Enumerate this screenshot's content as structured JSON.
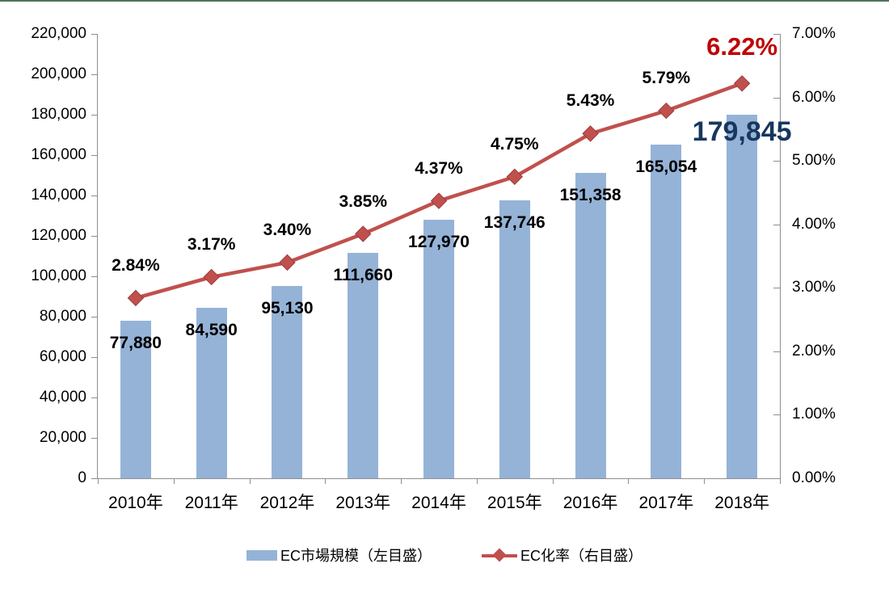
{
  "chart_data": {
    "type": "bar",
    "subtype": "combo-bar-line-dual-axis",
    "categories": [
      "2010年",
      "2011年",
      "2012年",
      "2013年",
      "2014年",
      "2015年",
      "2016年",
      "2017年",
      "2018年"
    ],
    "series": [
      {
        "name": "EC市場規模（左目盛）",
        "type": "bar",
        "axis": "left",
        "color": "#95B3D7",
        "values": [
          77880,
          84590,
          95130,
          111660,
          127970,
          137746,
          151358,
          165054,
          179845
        ],
        "labels": [
          "77,880",
          "84,590",
          "95,130",
          "111,660",
          "127,970",
          "137,746",
          "151,358",
          "165,054",
          "179,845"
        ],
        "emphasis_last": true,
        "emphasis_color": "#17375E"
      },
      {
        "name": "EC化率（右目盛）",
        "type": "line",
        "axis": "right",
        "color": "#C0504D",
        "marker": "diamond",
        "values": [
          2.84,
          3.17,
          3.4,
          3.85,
          4.37,
          4.75,
          5.43,
          5.79,
          6.22
        ],
        "labels": [
          "2.84%",
          "3.17%",
          "3.40%",
          "3.85%",
          "4.37%",
          "4.75%",
          "5.43%",
          "5.79%",
          "6.22%"
        ],
        "emphasis_last": true,
        "emphasis_color": "#C00000"
      }
    ],
    "left_axis": {
      "min": 0,
      "max": 220000,
      "step": 20000,
      "ticks": [
        "0",
        "20,000",
        "40,000",
        "60,000",
        "80,000",
        "100,000",
        "120,000",
        "140,000",
        "160,000",
        "180,000",
        "200,000",
        "220,000"
      ]
    },
    "right_axis": {
      "min": 0,
      "max": 7,
      "step": 1,
      "ticks": [
        "0.00%",
        "1.00%",
        "2.00%",
        "3.00%",
        "4.00%",
        "5.00%",
        "6.00%",
        "7.00%"
      ]
    },
    "grid": false,
    "legend_position": "bottom",
    "title": ""
  },
  "legend": {
    "items": [
      {
        "label": "EC市場規模（左目盛）",
        "swatch": "bar-swatch",
        "color": "#95B3D7"
      },
      {
        "label": "EC化率（右目盛）",
        "swatch": "line-diamond-swatch",
        "color": "#C0504D"
      }
    ]
  },
  "colors": {
    "bar_fill": "#95B3D7",
    "line": "#C0504D",
    "marker_edge": "#9e3d3a",
    "axis": "#8e8e8e",
    "text": "#000000",
    "emphasis_bar_label": "#17375E",
    "emphasis_line_label": "#C00000",
    "top_border": "#4f7357",
    "background": "#ffffff"
  }
}
